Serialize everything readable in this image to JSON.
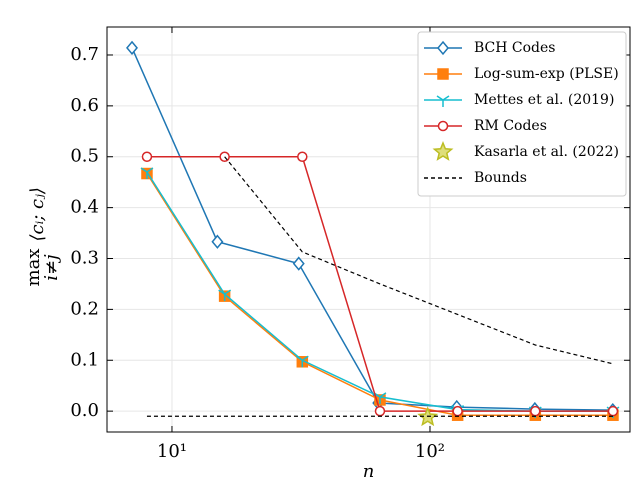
{
  "chart_data": {
    "type": "line",
    "xlabel": "n",
    "ylabel": "max",
    "ylabel_sub": "i≠j",
    "ylabel_expr": "⟨cᵢ; cⱼ⟩",
    "xlog": true,
    "xlim": [
      5.6,
      596
    ],
    "ylim": [
      -0.041,
      0.755
    ],
    "xticks": [
      {
        "value": 10,
        "label": "10¹"
      },
      {
        "value": 100,
        "label": "10²"
      }
    ],
    "yticks": [
      {
        "value": 0,
        "label": "0.0"
      },
      0.1,
      0.2,
      0.3,
      0.4,
      0.5,
      0.6,
      0.7
    ],
    "grid": true,
    "legend": "upper right",
    "series": [
      {
        "name": "BCH Codes",
        "color": "#1f77b4",
        "marker": "diamond",
        "x": [
          7,
          15,
          31,
          63,
          127,
          255,
          511
        ],
        "values": [
          0.714,
          0.333,
          0.29,
          0.016,
          0.008,
          0.004,
          0.002
        ]
      },
      {
        "name": "Log-sum-exp (PLSE)",
        "color": "#ff7f0e",
        "marker": "square",
        "x": [
          8,
          16,
          32,
          64,
          128,
          256,
          512
        ],
        "values": [
          0.467,
          0.226,
          0.097,
          0.022,
          -0.008,
          -0.008,
          -0.008
        ]
      },
      {
        "name": "Mettes et al. (2019)",
        "color": "#17becf",
        "marker": "tri",
        "x": [
          8,
          16,
          32,
          64,
          128,
          256,
          512
        ],
        "values": [
          0.47,
          0.23,
          0.1,
          0.028,
          0.003,
          0.0,
          0.0
        ]
      },
      {
        "name": "RM Codes",
        "color": "#d62728",
        "marker": "circle",
        "x": [
          8,
          16,
          32,
          64,
          128,
          256,
          512
        ],
        "values": [
          0.5,
          0.5,
          0.5,
          0.0,
          0.0,
          0.0,
          0.0
        ]
      },
      {
        "name": "Kasarla et al. (2022)",
        "color": "#bcbd22",
        "marker": "star",
        "x": [
          98
        ],
        "values": [
          -0.012
        ]
      },
      {
        "name": "Bounds",
        "color": "#000000",
        "dashed": true,
        "x": [
          16,
          32,
          64,
          128,
          256,
          512,
          null,
          8,
          512
        ],
        "values": [
          0.5,
          0.313,
          0.25,
          0.19,
          0.13,
          0.093,
          null,
          -0.01,
          -0.01
        ]
      }
    ]
  }
}
